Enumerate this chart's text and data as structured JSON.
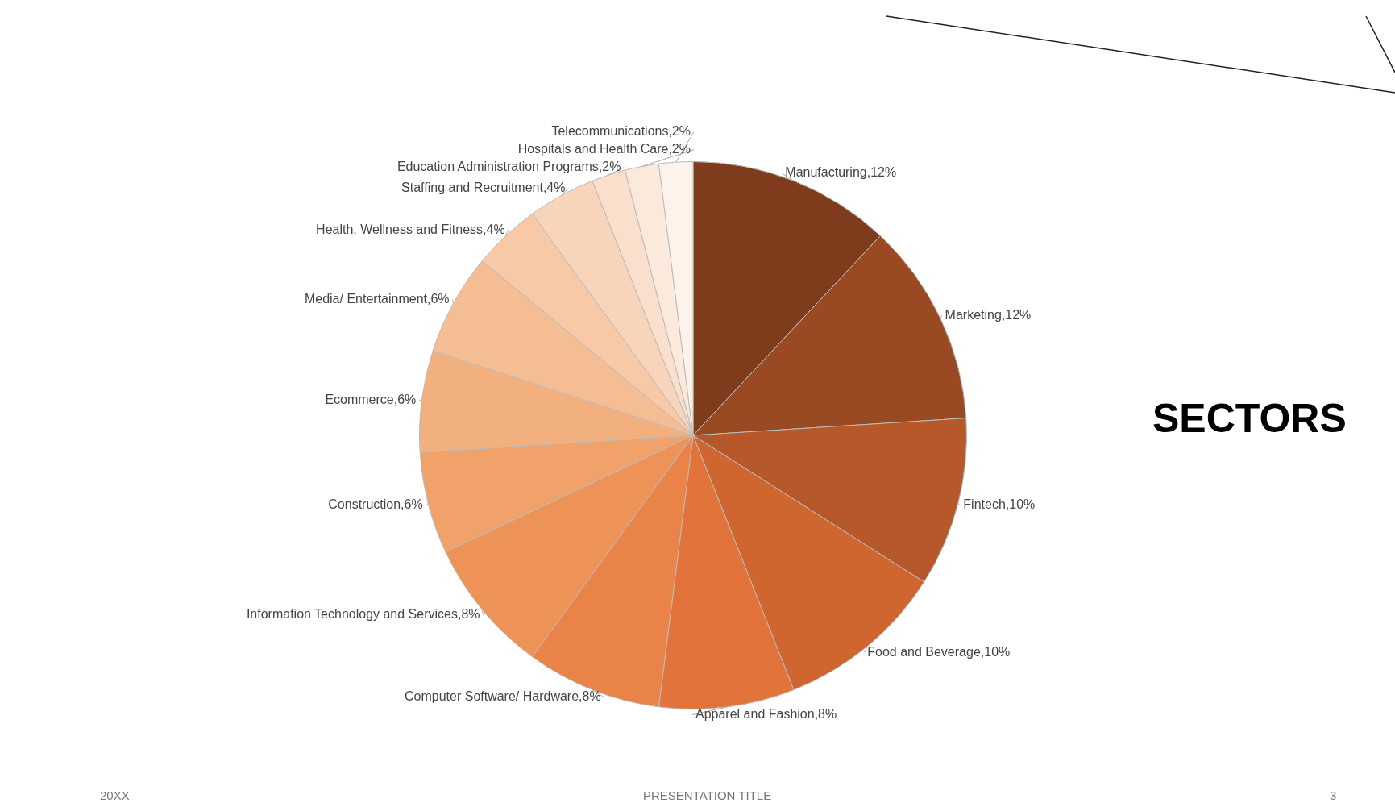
{
  "chart_data": {
    "type": "pie",
    "title": "SECTORS",
    "categories": [
      "Manufacturing",
      "Marketing",
      "Fintech",
      "Food and Beverage",
      "Apparel and Fashion",
      "Computer Software/ Hardware",
      "Information Technology and Services",
      "Construction",
      "Ecommerce",
      "Media/ Entertainment",
      "Health, Wellness and Fitness",
      "Staffing and Recruitment",
      "Education Administration Programs",
      "Hospitals and Health Care",
      "Telecommunications"
    ],
    "values": [
      12,
      12,
      10,
      10,
      8,
      8,
      8,
      6,
      6,
      6,
      4,
      4,
      2,
      2,
      2
    ],
    "value_labels": [
      "12%",
      "12%",
      "10%",
      "10%",
      "8%",
      "8%",
      "8%",
      "6%",
      "6%",
      "6%",
      "4%",
      "4%",
      "2%",
      "2%",
      "2%"
    ],
    "colors": [
      "#7e3c1c",
      "#9a4a22",
      "#b65829",
      "#cf6630",
      "#e2733a",
      "#ea8347",
      "#ee9358",
      "#f1a26b",
      "#f3b07f",
      "#f5bd93",
      "#f7c9a7",
      "#f8d5ba",
      "#fae0cc",
      "#fbe9dc",
      "#fdf3eb"
    ],
    "legend": false,
    "annotations": [
      "20XX",
      "PRESENTATION TITLE",
      "3"
    ]
  }
}
